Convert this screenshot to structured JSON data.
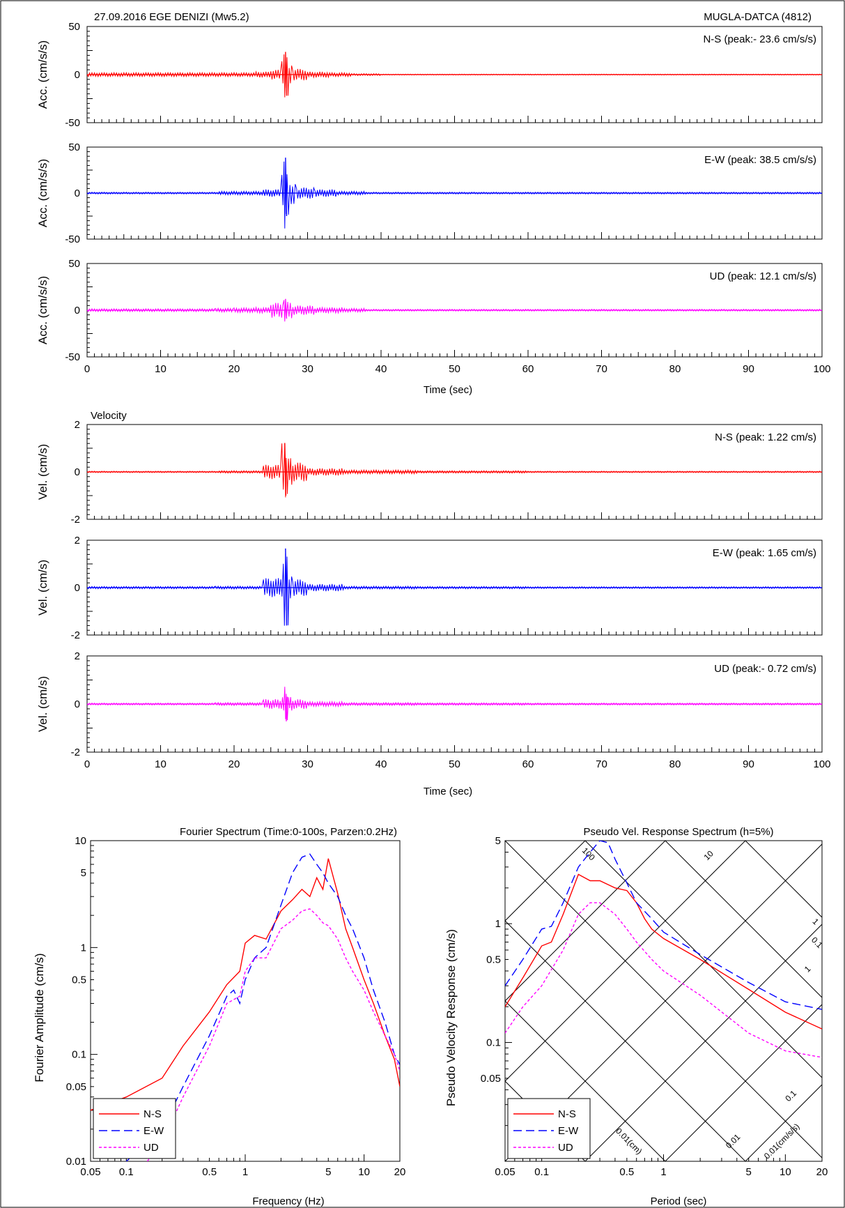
{
  "header": {
    "event": "27.09.2016 EGE DENIZI (Mw5.2)",
    "station": "MUGLA-DATCA (4812)"
  },
  "velocity_label": "Velocity",
  "time_axis_label": "Time (sec)",
  "time_ticks": [
    0,
    10,
    20,
    30,
    40,
    50,
    60,
    70,
    80,
    90,
    100
  ],
  "colors": {
    "ns": "#ff0000",
    "ew": "#0000ff",
    "ud": "#ff00ff"
  },
  "chart_data": [
    {
      "type": "line",
      "id": "acc-ns",
      "ylabel": "Acc. (cm/s/s)",
      "annotation": "N-S (peak:- 23.6 cm/s/s)",
      "xlim": [
        0,
        100
      ],
      "ylim": [
        -50,
        50
      ],
      "yticks": [
        50,
        0,
        -50
      ],
      "series": [
        {
          "name": "N-S",
          "color": "#ff0000",
          "x": [
            0,
            23,
            25,
            26.5,
            26.8,
            27.0,
            27.2,
            27.5,
            28,
            30,
            33,
            36,
            40,
            100
          ],
          "y": [
            0,
            2,
            3,
            5,
            14,
            23.6,
            -22,
            10,
            -6,
            3,
            2,
            1,
            0.5,
            0
          ]
        }
      ]
    },
    {
      "type": "line",
      "id": "acc-ew",
      "ylabel": "Acc. (cm/s/s)",
      "annotation": "E-W (peak: 38.5 cm/s/s)",
      "xlim": [
        0,
        100
      ],
      "ylim": [
        -50,
        50
      ],
      "yticks": [
        50,
        0,
        -50
      ],
      "series": [
        {
          "name": "E-W",
          "color": "#0000ff",
          "x": [
            0,
            18,
            24,
            26.5,
            26.8,
            27.0,
            27.2,
            27.6,
            28.5,
            31,
            34,
            38,
            100
          ],
          "y": [
            0,
            1,
            2,
            4,
            20,
            38.5,
            -25,
            12,
            -6,
            4,
            2,
            1,
            0
          ]
        }
      ]
    },
    {
      "type": "line",
      "id": "acc-ud",
      "ylabel": "Acc. (cm/s/s)",
      "annotation": "UD (peak: 12.1 cm/s/s)",
      "xlim": [
        0,
        100
      ],
      "ylim": [
        -50,
        50
      ],
      "yticks": [
        50,
        0,
        -50
      ],
      "series": [
        {
          "name": "UD",
          "color": "#ff00ff",
          "x": [
            0,
            17.5,
            20,
            23,
            25,
            26.8,
            27.0,
            27.3,
            28,
            31,
            35,
            38,
            100
          ],
          "y": [
            0,
            1.5,
            2,
            2.5,
            3,
            8,
            12.1,
            -9,
            5,
            3,
            2,
            1,
            0
          ]
        }
      ]
    },
    {
      "type": "line",
      "id": "vel-ns",
      "ylabel": "Vel. (cm/s)",
      "annotation": "N-S (peak: 1.22 cm/s)",
      "xlim": [
        0,
        100
      ],
      "ylim": [
        -2,
        2
      ],
      "yticks": [
        2,
        0,
        -2
      ],
      "series": [
        {
          "name": "N-S",
          "color": "#ff0000",
          "x": [
            0,
            18,
            24,
            26.5,
            26.9,
            27.1,
            27.4,
            28,
            30,
            35,
            45,
            60,
            100
          ],
          "y": [
            0,
            0.03,
            0.05,
            0.3,
            1.22,
            -1.0,
            0.6,
            -0.4,
            0.15,
            0.08,
            0.05,
            0.03,
            0
          ]
        }
      ]
    },
    {
      "type": "line",
      "id": "vel-ew",
      "ylabel": "Vel. (cm/s)",
      "annotation": "E-W (peak: 1.65 cm/s)",
      "xlim": [
        0,
        100
      ],
      "ylim": [
        -2,
        2
      ],
      "yticks": [
        2,
        0,
        -2
      ],
      "series": [
        {
          "name": "E-W",
          "color": "#0000ff",
          "x": [
            0,
            17.5,
            24,
            26.7,
            27.0,
            27.2,
            27.5,
            28,
            30,
            35,
            45,
            60,
            100
          ],
          "y": [
            0,
            0.05,
            0.06,
            0.4,
            1.65,
            -1.6,
            0.5,
            -0.35,
            0.15,
            0.06,
            0.05,
            0.04,
            0
          ]
        }
      ]
    },
    {
      "type": "line",
      "id": "vel-ud",
      "ylabel": "Vel. (cm/s)",
      "annotation": "UD (peak:- 0.72 cm/s)",
      "xlim": [
        0,
        100
      ],
      "ylim": [
        -2,
        2
      ],
      "yticks": [
        2,
        0,
        -2
      ],
      "series": [
        {
          "name": "UD",
          "color": "#ff00ff",
          "x": [
            0,
            17.5,
            24,
            26.6,
            26.9,
            27.1,
            27.4,
            28,
            30,
            35,
            45,
            60,
            100
          ],
          "y": [
            0,
            0.04,
            0.06,
            0.2,
            0.35,
            -0.72,
            0.3,
            -0.2,
            0.1,
            0.06,
            0.05,
            0.04,
            0
          ]
        }
      ]
    },
    {
      "type": "line",
      "id": "fourier",
      "scale": "log-log",
      "title": "Fourier Spectrum (Time:0-100s, Parzen:0.2Hz)",
      "xlabel": "Frequency (Hz)",
      "ylabel": "Fourier Amplitude (cm/s)",
      "xlim": [
        0.05,
        20
      ],
      "ylim": [
        0.01,
        10
      ],
      "xticks": [
        "0.05",
        "0.1",
        "0.5",
        "1",
        "5",
        "10",
        "20"
      ],
      "yticks": [
        "0.01",
        "0.05",
        "0.1",
        "0.5",
        "1",
        "5",
        "10"
      ],
      "legend_position": "bottom-left",
      "series": [
        {
          "name": "N-S",
          "color": "#ff0000",
          "dash": "solid",
          "x": [
            0.05,
            0.1,
            0.2,
            0.3,
            0.5,
            0.7,
            0.9,
            1.0,
            1.2,
            1.5,
            2.0,
            2.5,
            3.0,
            3.5,
            4.0,
            4.5,
            5.0,
            6.0,
            7.0,
            8.0,
            10.0,
            12.0,
            15.0,
            18.0,
            20.0
          ],
          "y": [
            0.03,
            0.04,
            0.06,
            0.12,
            0.25,
            0.45,
            0.6,
            1.1,
            1.3,
            1.2,
            2.2,
            2.8,
            3.5,
            3.0,
            4.5,
            3.5,
            6.8,
            3.2,
            1.5,
            1.0,
            0.5,
            0.3,
            0.15,
            0.09,
            0.05
          ]
        },
        {
          "name": "E-W",
          "color": "#0000ff",
          "dash": "long",
          "x": [
            0.1,
            0.2,
            0.3,
            0.5,
            0.7,
            0.8,
            0.9,
            1.0,
            1.2,
            1.5,
            2.0,
            2.5,
            3.0,
            3.5,
            4.0,
            4.5,
            5.0,
            6.0,
            7.0,
            8.0,
            10.0,
            12.0,
            15.0,
            18.0,
            20.0
          ],
          "y": [
            0.01,
            0.02,
            0.05,
            0.15,
            0.35,
            0.4,
            0.3,
            0.5,
            0.8,
            1.0,
            2.5,
            5.0,
            7.0,
            7.5,
            6.0,
            5.0,
            4.0,
            3.0,
            2.0,
            1.5,
            0.8,
            0.4,
            0.2,
            0.1,
            0.08
          ]
        },
        {
          "name": "UD",
          "color": "#ff00ff",
          "dash": "short",
          "x": [
            0.15,
            0.2,
            0.3,
            0.5,
            0.7,
            0.9,
            1.0,
            1.2,
            1.5,
            2.0,
            2.5,
            3.0,
            3.5,
            4.0,
            4.5,
            5.0,
            6.0,
            7.0,
            8.0,
            10.0,
            12.0,
            15.0,
            18.0,
            20.0
          ],
          "y": [
            0.01,
            0.015,
            0.04,
            0.12,
            0.3,
            0.35,
            0.6,
            0.8,
            0.8,
            1.5,
            1.8,
            2.2,
            2.3,
            2.0,
            1.7,
            1.6,
            1.2,
            0.8,
            0.6,
            0.4,
            0.25,
            0.15,
            0.1,
            0.07
          ]
        }
      ]
    },
    {
      "type": "line",
      "id": "psv",
      "scale": "log-log",
      "title": "Pseudo Vel. Response Spectrum (h=5%)",
      "xlabel": "Period (sec)",
      "ylabel": "Pseudo Velocity Response (cm/s)",
      "xlim": [
        0.05,
        20
      ],
      "ylim": [
        0.01,
        5
      ],
      "xticks": [
        "0.05",
        "0.1",
        "0.5",
        "1",
        "5",
        "10",
        "20"
      ],
      "yticks": [
        "0.05",
        "0.1",
        "0.5",
        "1",
        "5"
      ],
      "tripartite_labels": [
        "100",
        "10",
        "1",
        "0.1",
        "0.01",
        "0.1",
        "1",
        "0.01(cm)",
        "0.01(cm/s/s)"
      ],
      "legend_position": "bottom-left",
      "series": [
        {
          "name": "N-S",
          "color": "#ff0000",
          "dash": "solid",
          "x": [
            0.05,
            0.07,
            0.1,
            0.12,
            0.15,
            0.2,
            0.25,
            0.3,
            0.4,
            0.5,
            0.6,
            0.7,
            0.8,
            1.0,
            2.0,
            5.0,
            10.0,
            20.0
          ],
          "y": [
            0.2,
            0.35,
            0.65,
            0.7,
            1.2,
            2.6,
            2.3,
            2.3,
            2.0,
            1.9,
            1.5,
            1.1,
            0.9,
            0.75,
            0.5,
            0.28,
            0.18,
            0.13
          ]
        },
        {
          "name": "E-W",
          "color": "#0000ff",
          "dash": "long",
          "x": [
            0.05,
            0.07,
            0.1,
            0.12,
            0.15,
            0.2,
            0.25,
            0.3,
            0.35,
            0.4,
            0.5,
            0.6,
            0.8,
            1.0,
            2.0,
            5.0,
            10.0,
            20.0
          ],
          "y": [
            0.3,
            0.5,
            0.9,
            0.95,
            1.5,
            3.0,
            4.0,
            5.0,
            4.8,
            3.5,
            2.2,
            1.5,
            1.1,
            0.85,
            0.55,
            0.32,
            0.22,
            0.19
          ]
        },
        {
          "name": "UD",
          "color": "#ff00ff",
          "dash": "short",
          "x": [
            0.05,
            0.07,
            0.1,
            0.15,
            0.2,
            0.25,
            0.3,
            0.4,
            0.5,
            0.6,
            0.8,
            1.0,
            2.0,
            5.0,
            10.0,
            20.0
          ],
          "y": [
            0.12,
            0.2,
            0.3,
            0.6,
            1.2,
            1.5,
            1.5,
            1.2,
            0.9,
            0.7,
            0.5,
            0.4,
            0.25,
            0.12,
            0.085,
            0.075
          ]
        }
      ]
    }
  ]
}
